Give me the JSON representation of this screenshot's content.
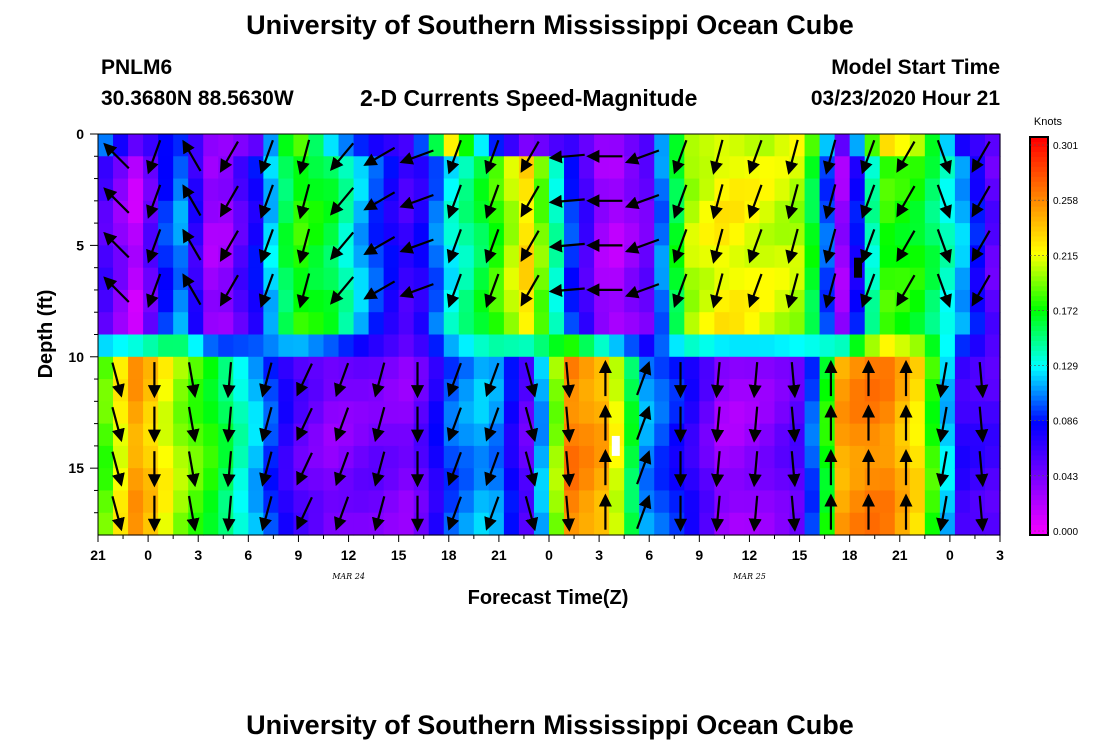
{
  "header": {
    "title": "University of Southern Mississippi Ocean Cube",
    "station": "PNLM6",
    "coords": "30.3680N 88.5630W",
    "subtitle": "2-D Currents Speed-Magnitude",
    "model_start_label": "Model Start Time",
    "model_start_value": "03/23/2020 Hour 21"
  },
  "footer": {
    "title": "University of Southern Mississippi Ocean Cube"
  },
  "chart_data": {
    "type": "heatmap",
    "xlabel": "Forecast Time(Z)",
    "ylabel": "Depth (ft)",
    "x_tick_labels": [
      "21",
      "0",
      "3",
      "6",
      "9",
      "12",
      "15",
      "18",
      "21",
      "0",
      "3",
      "6",
      "9",
      "12",
      "15",
      "18",
      "21",
      "0",
      "3"
    ],
    "date_labels": [
      {
        "label": "MAR 24",
        "at_tick": 5
      },
      {
        "label": "MAR 25",
        "at_tick": 13
      }
    ],
    "y_tick_labels": [
      "0",
      "5",
      "10",
      "15"
    ],
    "y_ticks": [
      0,
      5,
      10,
      15
    ],
    "ylim": [
      0,
      18
    ],
    "x_hours_from_start": [
      0,
      54
    ],
    "colorbar": {
      "unit": "Knots",
      "range": [
        0.0,
        0.301
      ],
      "tick_labels": [
        "0.301",
        "0.258",
        "0.215",
        "0.172",
        "0.129",
        "0.086",
        "0.043",
        "0.000"
      ],
      "colors": [
        "#ff00ff",
        "#8000ff",
        "#0000ff",
        "#00ffff",
        "#00ff00",
        "#ffff00",
        "#ff8000",
        "#ff0000"
      ]
    },
    "depth_levels": [
      0,
      1,
      2,
      3,
      4,
      5,
      6,
      7,
      8,
      9,
      10,
      11,
      12,
      13,
      14,
      15,
      16,
      17
    ],
    "speed_surface": [
      0.12,
      0.05,
      0.1,
      0.03,
      0.05,
      0.2,
      0.12,
      0.08,
      0.06,
      0.22,
      0.1,
      0.04,
      0.07,
      0.03,
      0.06,
      0.2,
      0.21,
      0.2,
      0.22,
      0.05,
      0.23,
      0.2,
      0.08,
      0.05
    ],
    "speed_upper": [
      0.07,
      0.02,
      0.12,
      0.02,
      0.08,
      0.18,
      0.16,
      0.1,
      0.06,
      0.13,
      0.17,
      0.23,
      0.1,
      0.02,
      0.05,
      0.2,
      0.22,
      0.21,
      0.2,
      0.03,
      0.18,
      0.17,
      0.12,
      0.04
    ],
    "speed_lower": [
      0.17,
      0.25,
      0.2,
      0.17,
      0.12,
      0.06,
      0.04,
      0.05,
      0.04,
      0.1,
      0.12,
      0.05,
      0.26,
      0.24,
      0.11,
      0.08,
      0.03,
      0.04,
      0.06,
      0.25,
      0.26,
      0.22,
      0.07,
      0.06
    ],
    "arrows_upper_deg": [
      315,
      200,
      330,
      210,
      200,
      195,
      220,
      240,
      250,
      200,
      200,
      210,
      265,
      270,
      250,
      200,
      195,
      200,
      195,
      195,
      200,
      210,
      160,
      210
    ],
    "arrows_lower_deg": [
      165,
      180,
      170,
      185,
      195,
      205,
      200,
      195,
      180,
      200,
      200,
      165,
      175,
      0,
      20,
      180,
      185,
      185,
      175,
      0,
      0,
      0,
      190,
      175
    ],
    "markers": [
      {
        "depth": 14.0,
        "hour": 31.0,
        "color": "#ffffff"
      },
      {
        "depth": 6.0,
        "hour": 45.5,
        "color": "#000000"
      }
    ]
  }
}
